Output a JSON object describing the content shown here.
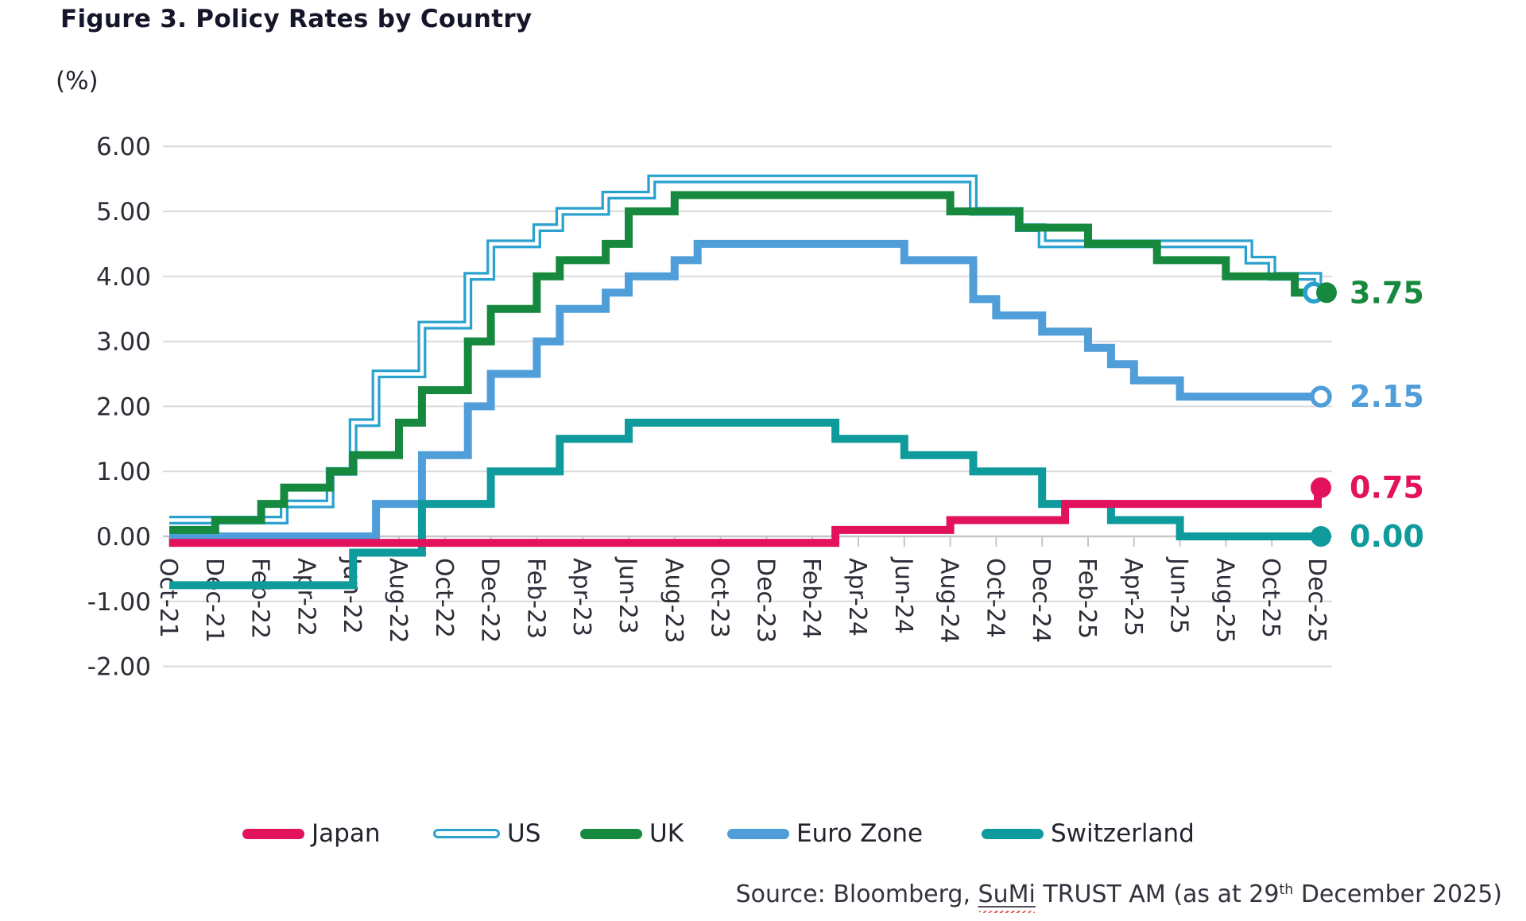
{
  "title": "Figure 3. Policy Rates by Country",
  "y_axis": {
    "unit_label": "(%)",
    "tick_labels": [
      "6.00",
      "5.00",
      "4.00",
      "3.00",
      "2.00",
      "1.00",
      "0.00",
      "-1.00",
      "-2.00"
    ],
    "max": 6,
    "min": -2,
    "step": 1
  },
  "x_axis": {
    "tick_labels": [
      "Oct-21",
      "Dec-21",
      "Feb-22",
      "Apr-22",
      "Jun-22",
      "Aug-22",
      "Oct-22",
      "Dec-22",
      "Feb-23",
      "Apr-23",
      "Jun-23",
      "Aug-23",
      "Oct-23",
      "Dec-23",
      "Feb-24",
      "Apr-24",
      "Jun-24",
      "Aug-24",
      "Oct-24",
      "Dec-24",
      "Feb-25",
      "Apr-25",
      "Jun-25",
      "Aug-25",
      "Oct-25",
      "Dec-25"
    ],
    "months_total": 51,
    "label_every_months": 2
  },
  "chart_data": {
    "type": "line",
    "step": true,
    "title": "Figure 3. Policy Rates by Country",
    "ylabel": "(%)",
    "ylim": [
      -2,
      6
    ],
    "x_start": "Oct-21",
    "x_end": "Dec-25",
    "grid": "horizontal",
    "legend_position": "bottom",
    "note": "changes = [monthIndexFromOct21, newRate]; value holds until next change; last month index = 50 (Dec-25)",
    "series": [
      {
        "name": "Japan",
        "color": "#e3125c",
        "line_style": "solid",
        "marker": "filled",
        "end_value": 0.75,
        "changes": [
          [
            0,
            -0.1
          ],
          [
            29,
            0.1
          ],
          [
            34,
            0.25
          ],
          [
            39,
            0.5
          ],
          [
            50,
            0.75
          ]
        ]
      },
      {
        "name": "US",
        "color": "#2aa2cd",
        "line_style": "double",
        "marker": "open",
        "end_value": 3.75,
        "changes": [
          [
            0,
            0.25
          ],
          [
            5,
            0.5
          ],
          [
            7,
            1.0
          ],
          [
            8,
            1.75
          ],
          [
            9,
            2.5
          ],
          [
            11,
            3.25
          ],
          [
            13,
            4.0
          ],
          [
            14,
            4.5
          ],
          [
            16,
            4.75
          ],
          [
            17,
            5.0
          ],
          [
            19,
            5.25
          ],
          [
            21,
            5.5
          ],
          [
            35,
            5.0
          ],
          [
            37,
            4.75
          ],
          [
            38,
            4.5
          ],
          [
            47,
            4.25
          ],
          [
            48,
            4.0
          ],
          [
            50,
            3.75
          ]
        ]
      },
      {
        "name": "UK",
        "color": "#17893e",
        "line_style": "solid",
        "marker": "filled",
        "end_value": 3.75,
        "changes": [
          [
            0,
            0.1
          ],
          [
            2,
            0.25
          ],
          [
            4,
            0.5
          ],
          [
            5,
            0.75
          ],
          [
            7,
            1.0
          ],
          [
            8,
            1.25
          ],
          [
            10,
            1.75
          ],
          [
            11,
            2.25
          ],
          [
            13,
            3.0
          ],
          [
            14,
            3.5
          ],
          [
            16,
            4.0
          ],
          [
            17,
            4.25
          ],
          [
            19,
            4.5
          ],
          [
            20,
            5.0
          ],
          [
            22,
            5.25
          ],
          [
            34,
            5.0
          ],
          [
            37,
            4.75
          ],
          [
            40,
            4.5
          ],
          [
            43,
            4.25
          ],
          [
            46,
            4.0
          ],
          [
            49,
            3.75
          ]
        ]
      },
      {
        "name": "Euro Zone",
        "color": "#4f9ed9",
        "line_style": "solid",
        "marker": "open",
        "end_value": 2.15,
        "changes": [
          [
            0,
            0.0
          ],
          [
            9,
            0.5
          ],
          [
            11,
            1.25
          ],
          [
            13,
            2.0
          ],
          [
            14,
            2.5
          ],
          [
            16,
            3.0
          ],
          [
            17,
            3.5
          ],
          [
            19,
            3.75
          ],
          [
            20,
            4.0
          ],
          [
            22,
            4.25
          ],
          [
            23,
            4.5
          ],
          [
            32,
            4.25
          ],
          [
            35,
            3.65
          ],
          [
            36,
            3.4
          ],
          [
            38,
            3.15
          ],
          [
            40,
            2.9
          ],
          [
            41,
            2.65
          ],
          [
            42,
            2.4
          ],
          [
            44,
            2.15
          ]
        ]
      },
      {
        "name": "Switzerland",
        "color": "#0f9a9c",
        "line_style": "solid",
        "marker": "filled",
        "end_value": 0.0,
        "changes": [
          [
            0,
            -0.75
          ],
          [
            8,
            -0.25
          ],
          [
            11,
            0.5
          ],
          [
            14,
            1.0
          ],
          [
            17,
            1.5
          ],
          [
            20,
            1.75
          ],
          [
            29,
            1.5
          ],
          [
            32,
            1.25
          ],
          [
            35,
            1.0
          ],
          [
            38,
            0.5
          ],
          [
            41,
            0.25
          ],
          [
            44,
            0.0
          ]
        ]
      }
    ],
    "end_labels": [
      {
        "text": "3.75",
        "value": 3.75,
        "color": "#17893e"
      },
      {
        "text": "2.15",
        "value": 2.15,
        "color": "#4f9ed9"
      },
      {
        "text": "0.75",
        "value": 0.75,
        "color": "#e3125c"
      },
      {
        "text": "0.00",
        "value": 0.0,
        "color": "#0f9a9c"
      }
    ],
    "colors": {
      "grid": "#dadada",
      "zero_axis": "#c6c6c6",
      "tick": "#c6c6c6",
      "axis_text": "#2d2d38"
    }
  },
  "legend": {
    "items": [
      {
        "label": "Japan",
        "color": "#e3125c",
        "style": "solid",
        "x": 305
      },
      {
        "label": "US",
        "color": "#2aa2cd",
        "style": "double",
        "x": 545
      },
      {
        "label": "UK",
        "color": "#17893e",
        "style": "solid",
        "x": 730
      },
      {
        "label": "Euro Zone",
        "color": "#4f9ed9",
        "style": "solid",
        "x": 915
      },
      {
        "label": "Switzerland",
        "color": "#0f9a9c",
        "style": "solid",
        "x": 1235
      }
    ]
  },
  "source": {
    "prefix": "Source: Bloomberg, ",
    "brand": "SuMi",
    "middle": " TRUST AM  (as at 29",
    "superscript": "th",
    "suffix": " December 2025)"
  }
}
